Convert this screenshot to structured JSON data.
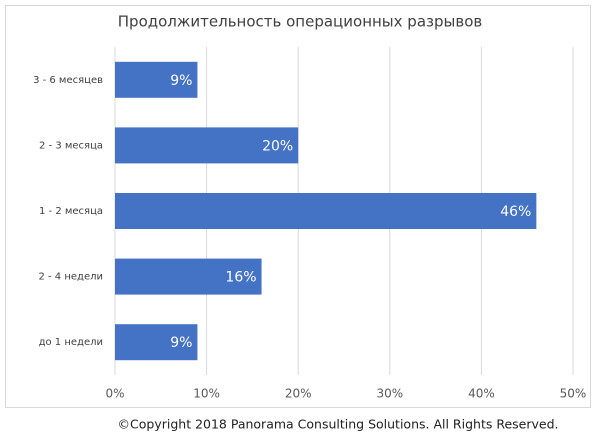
{
  "chart_data": {
    "type": "bar",
    "orientation": "horizontal",
    "title": "Продолжительность операционных разрывов",
    "categories": [
      "3 - 6 месяцев",
      "2 - 3 месяца",
      "1 - 2 месяца",
      "2 - 4 недели",
      "до 1 недели"
    ],
    "values": [
      9,
      20,
      46,
      16,
      9
    ],
    "value_labels": [
      "9%",
      "20%",
      "46%",
      "16%",
      "9%"
    ],
    "color": "#4472c4",
    "xlim": [
      0,
      50
    ],
    "xticks": [
      {
        "value": 0,
        "label": "0%"
      },
      {
        "value": 10,
        "label": "10%"
      },
      {
        "value": 20,
        "label": "20%"
      },
      {
        "value": 30,
        "label": "30%"
      },
      {
        "value": 40,
        "label": "40%"
      },
      {
        "value": 50,
        "label": "50%"
      }
    ],
    "grid": true,
    "footer": "©Copyright 2018 Panorama Consulting Solutions.  All Rights Reserved."
  }
}
